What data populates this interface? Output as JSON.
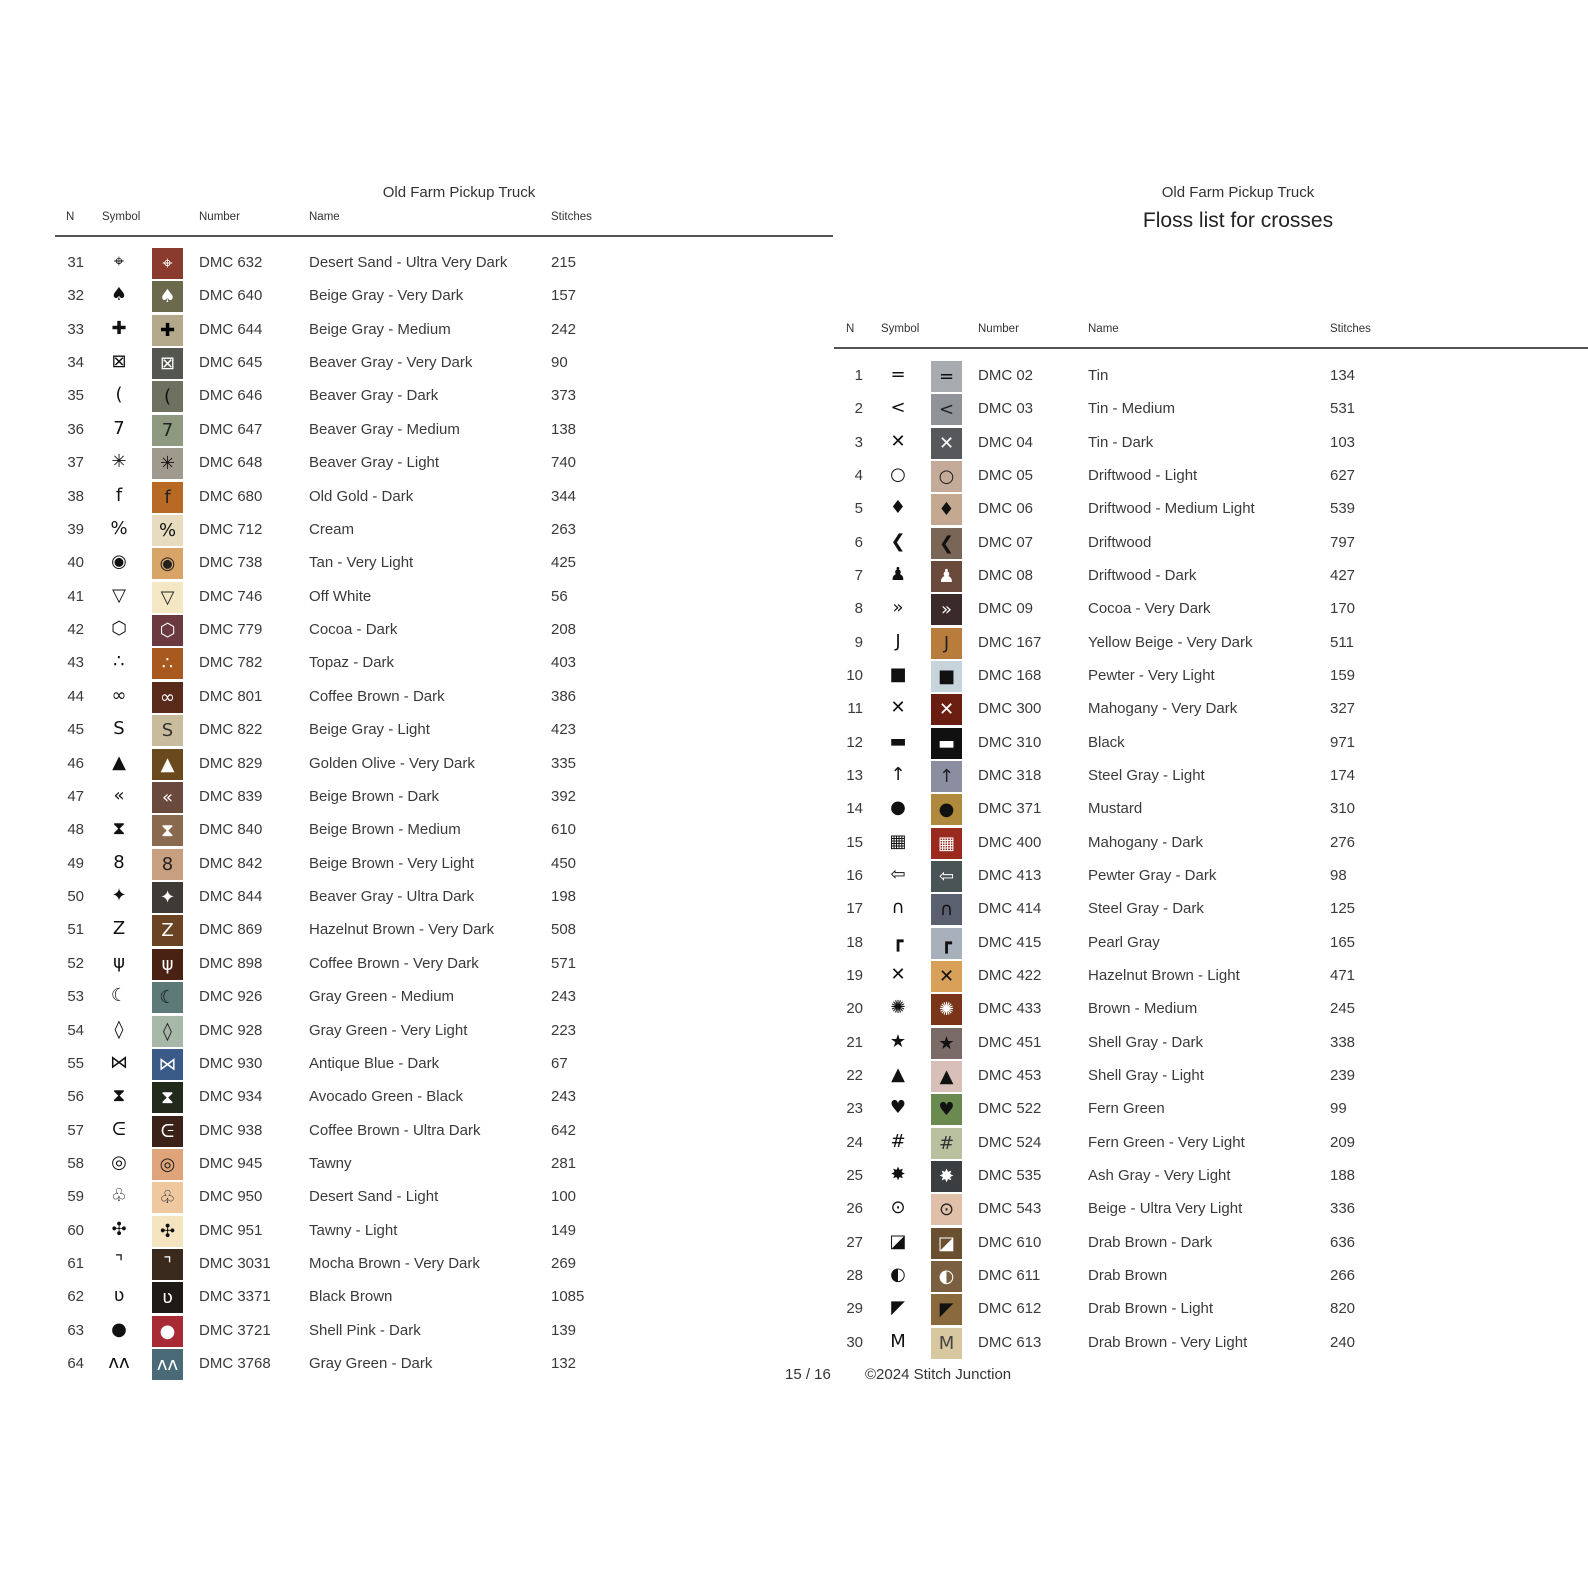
{
  "left": {
    "title": "Old Farm Pickup Truck",
    "headers": {
      "n": "N",
      "symbol": "Symbol",
      "number": "Number",
      "name": "Name",
      "stitches": "Stitches"
    },
    "rows": [
      {
        "n": "31",
        "sym": "⌖",
        "color": "#8b3a2e",
        "fg": "#fff",
        "number": "DMC 632",
        "name": "Desert Sand - Ultra Very Dark",
        "stitches": "215"
      },
      {
        "n": "32",
        "sym": "♠",
        "color": "#6b6a4c",
        "fg": "#fff",
        "number": "DMC 640",
        "name": "Beige Gray - Very Dark",
        "stitches": "157"
      },
      {
        "n": "33",
        "sym": "✚",
        "color": "#b3a88a",
        "fg": "#000",
        "number": "DMC 644",
        "name": "Beige Gray - Medium",
        "stitches": "242"
      },
      {
        "n": "34",
        "sym": "⊠",
        "color": "#545650",
        "fg": "#fff",
        "number": "DMC 645",
        "name": "Beaver Gray - Very Dark",
        "stitches": "90"
      },
      {
        "n": "35",
        "sym": "(",
        "color": "#6e7060",
        "fg": "#111",
        "number": "DMC 646",
        "name": "Beaver Gray - Dark",
        "stitches": "373"
      },
      {
        "n": "36",
        "sym": "7",
        "color": "#8e9a80",
        "fg": "#222",
        "number": "DMC 647",
        "name": "Beaver Gray - Medium",
        "stitches": "138"
      },
      {
        "n": "37",
        "sym": "✳",
        "color": "#a09a8e",
        "fg": "#111",
        "number": "DMC 648",
        "name": "Beaver Gray - Light",
        "stitches": "740"
      },
      {
        "n": "38",
        "sym": "f",
        "color": "#b86a24",
        "fg": "#222",
        "number": "DMC 680",
        "name": "Old Gold - Dark",
        "stitches": "344"
      },
      {
        "n": "39",
        "sym": "%",
        "color": "#e8dcc0",
        "fg": "#111",
        "number": "DMC 712",
        "name": "Cream",
        "stitches": "263"
      },
      {
        "n": "40",
        "sym": "◉",
        "color": "#d8a468",
        "fg": "#222",
        "number": "DMC 738",
        "name": "Tan - Very Light",
        "stitches": "425"
      },
      {
        "n": "41",
        "sym": "▽",
        "color": "#f4e8c4",
        "fg": "#222",
        "number": "DMC 746",
        "name": "Off White",
        "stitches": "56"
      },
      {
        "n": "42",
        "sym": "⬡",
        "color": "#6b3a40",
        "fg": "#fff",
        "number": "DMC 779",
        "name": "Cocoa - Dark",
        "stitches": "208"
      },
      {
        "n": "43",
        "sym": "∴",
        "color": "#a85a1e",
        "fg": "#fff",
        "number": "DMC 782",
        "name": "Topaz - Dark",
        "stitches": "403"
      },
      {
        "n": "44",
        "sym": "∞",
        "color": "#5a2a1a",
        "fg": "#fff",
        "number": "DMC 801",
        "name": "Coffee Brown - Dark",
        "stitches": "386"
      },
      {
        "n": "45",
        "sym": "S",
        "color": "#c8bc9c",
        "fg": "#333",
        "number": "DMC 822",
        "name": "Beige Gray - Light",
        "stitches": "423"
      },
      {
        "n": "46",
        "sym": "▲",
        "color": "#6a4a1c",
        "fg": "#fff",
        "number": "DMC 829",
        "name": "Golden Olive - Very Dark",
        "stitches": "335"
      },
      {
        "n": "47",
        "sym": "«",
        "color": "#6a4a3c",
        "fg": "#fff",
        "number": "DMC 839",
        "name": "Beige Brown - Dark",
        "stitches": "392"
      },
      {
        "n": "48",
        "sym": "⧗",
        "color": "#8a6a4e",
        "fg": "#fff",
        "number": "DMC 840",
        "name": "Beige Brown - Medium",
        "stitches": "610"
      },
      {
        "n": "49",
        "sym": "8",
        "color": "#c8a080",
        "fg": "#222",
        "number": "DMC 842",
        "name": "Beige Brown - Very Light",
        "stitches": "450"
      },
      {
        "n": "50",
        "sym": "✦",
        "color": "#3e3a36",
        "fg": "#fff",
        "number": "DMC 844",
        "name": "Beaver Gray - Ultra Dark",
        "stitches": "198"
      },
      {
        "n": "51",
        "sym": "Z",
        "color": "#6a4422",
        "fg": "#fff",
        "number": "DMC 869",
        "name": "Hazelnut Brown - Very Dark",
        "stitches": "508"
      },
      {
        "n": "52",
        "sym": "ψ",
        "color": "#4a2214",
        "fg": "#fff",
        "number": "DMC 898",
        "name": "Coffee Brown - Very Dark",
        "stitches": "571"
      },
      {
        "n": "53",
        "sym": "☾",
        "color": "#5e7a78",
        "fg": "#111",
        "number": "DMC 926",
        "name": "Gray Green - Medium",
        "stitches": "243"
      },
      {
        "n": "54",
        "sym": "◊",
        "color": "#a8b8a8",
        "fg": "#222",
        "number": "DMC 928",
        "name": "Gray Green - Very Light",
        "stitches": "223"
      },
      {
        "n": "55",
        "sym": "⋈",
        "color": "#3a5a88",
        "fg": "#fff",
        "number": "DMC 930",
        "name": "Antique Blue - Dark",
        "stitches": "67"
      },
      {
        "n": "56",
        "sym": "⧗",
        "color": "#222a1c",
        "fg": "#fff",
        "number": "DMC 934",
        "name": "Avocado Green - Black",
        "stitches": "243"
      },
      {
        "n": "57",
        "sym": "ᕮ",
        "color": "#3a2218",
        "fg": "#fff",
        "number": "DMC 938",
        "name": "Coffee Brown - Ultra Dark",
        "stitches": "642"
      },
      {
        "n": "58",
        "sym": "◎",
        "color": "#e0a47a",
        "fg": "#222",
        "number": "DMC 945",
        "name": "Tawny",
        "stitches": "281"
      },
      {
        "n": "59",
        "sym": "♧",
        "color": "#f0c8a0",
        "fg": "#222",
        "number": "DMC 950",
        "name": "Desert Sand - Light",
        "stitches": "100"
      },
      {
        "n": "60",
        "sym": "✣",
        "color": "#f4e4c0",
        "fg": "#111",
        "number": "DMC 951",
        "name": "Tawny - Light",
        "stitches": "149"
      },
      {
        "n": "61",
        "sym": "⌝",
        "color": "#3a2a1e",
        "fg": "#fff",
        "number": "DMC 3031",
        "name": "Mocha Brown - Very Dark",
        "stitches": "269"
      },
      {
        "n": "62",
        "sym": "ʋ",
        "color": "#1e1a16",
        "fg": "#fff",
        "number": "DMC 3371",
        "name": "Black Brown",
        "stitches": "1085"
      },
      {
        "n": "63",
        "sym": "●",
        "color": "#a82a34",
        "fg": "#fff",
        "number": "DMC 3721",
        "name": "Shell Pink - Dark",
        "stitches": "139"
      },
      {
        "n": "64",
        "sym": "ʌʌ",
        "color": "#4a6a78",
        "fg": "#fff",
        "number": "DMC 3768",
        "name": "Gray Green - Dark",
        "stitches": "132"
      }
    ]
  },
  "right": {
    "title": "Old Farm Pickup Truck",
    "subtitle": "Floss list for crosses",
    "headers": {
      "n": "N",
      "symbol": "Symbol",
      "number": "Number",
      "name": "Name",
      "stitches": "Stitches"
    },
    "rows": [
      {
        "n": "1",
        "sym": "=",
        "color": "#a8acb0",
        "fg": "#111",
        "number": "DMC 02",
        "name": "Tin",
        "stitches": "134"
      },
      {
        "n": "2",
        "sym": "<",
        "color": "#909498",
        "fg": "#222",
        "number": "DMC 03",
        "name": "Tin - Medium",
        "stitches": "531"
      },
      {
        "n": "3",
        "sym": "✕",
        "color": "#56585c",
        "fg": "#fff",
        "number": "DMC 04",
        "name": "Tin - Dark",
        "stitches": "103"
      },
      {
        "n": "4",
        "sym": "○",
        "color": "#c4aa98",
        "fg": "#222",
        "number": "DMC 05",
        "name": "Driftwood - Light",
        "stitches": "627"
      },
      {
        "n": "5",
        "sym": "♦",
        "color": "#c4a890",
        "fg": "#111",
        "number": "DMC 06",
        "name": "Driftwood - Medium Light",
        "stitches": "539"
      },
      {
        "n": "6",
        "sym": "❮",
        "color": "#7a6656",
        "fg": "#111",
        "number": "DMC 07",
        "name": "Driftwood",
        "stitches": "797"
      },
      {
        "n": "7",
        "sym": "♟",
        "color": "#6a4a3a",
        "fg": "#fff",
        "number": "DMC 08",
        "name": "Driftwood - Dark",
        "stitches": "427"
      },
      {
        "n": "8",
        "sym": "»",
        "color": "#3a2a2a",
        "fg": "#fff",
        "number": "DMC 09",
        "name": "Cocoa - Very Dark",
        "stitches": "170"
      },
      {
        "n": "9",
        "sym": "J",
        "color": "#b87c3c",
        "fg": "#222",
        "number": "DMC 167",
        "name": "Yellow Beige - Very Dark",
        "stitches": "511"
      },
      {
        "n": "10",
        "sym": "■",
        "color": "#c8d4dc",
        "fg": "#111",
        "number": "DMC 168",
        "name": "Pewter - Very Light",
        "stitches": "159"
      },
      {
        "n": "11",
        "sym": "✕",
        "color": "#6a1e12",
        "fg": "#fff",
        "number": "DMC 300",
        "name": "Mahogany - Very Dark",
        "stitches": "327"
      },
      {
        "n": "12",
        "sym": "▬",
        "color": "#101010",
        "fg": "#fff",
        "number": "DMC 310",
        "name": "Black",
        "stitches": "971"
      },
      {
        "n": "13",
        "sym": "↑",
        "color": "#8a8ea0",
        "fg": "#222",
        "number": "DMC 318",
        "name": "Steel Gray - Light",
        "stitches": "174"
      },
      {
        "n": "14",
        "sym": "●",
        "color": "#b08a3c",
        "fg": "#111",
        "number": "DMC 371",
        "name": "Mustard",
        "stitches": "310"
      },
      {
        "n": "15",
        "sym": "▦",
        "color": "#9a2a1e",
        "fg": "#fff",
        "number": "DMC 400",
        "name": "Mahogany - Dark",
        "stitches": "276"
      },
      {
        "n": "16",
        "sym": "⇦",
        "color": "#4a5456",
        "fg": "#fff",
        "number": "DMC 413",
        "name": "Pewter Gray - Dark",
        "stitches": "98"
      },
      {
        "n": "17",
        "sym": "∩",
        "color": "#5a6070",
        "fg": "#111",
        "number": "DMC 414",
        "name": "Steel Gray - Dark",
        "stitches": "125"
      },
      {
        "n": "18",
        "sym": "┏",
        "color": "#a8b0bc",
        "fg": "#111",
        "number": "DMC 415",
        "name": "Pearl Gray",
        "stitches": "165"
      },
      {
        "n": "19",
        "sym": "✕",
        "color": "#d8a058",
        "fg": "#111",
        "number": "DMC 422",
        "name": "Hazelnut Brown - Light",
        "stitches": "471"
      },
      {
        "n": "20",
        "sym": "✺",
        "color": "#7a3418",
        "fg": "#fff",
        "number": "DMC 433",
        "name": "Brown - Medium",
        "stitches": "245"
      },
      {
        "n": "21",
        "sym": "★",
        "color": "#7a6a68",
        "fg": "#111",
        "number": "DMC 451",
        "name": "Shell Gray - Dark",
        "stitches": "338"
      },
      {
        "n": "22",
        "sym": "▲",
        "color": "#d8c0b8",
        "fg": "#111",
        "number": "DMC 453",
        "name": "Shell Gray - Light",
        "stitches": "239"
      },
      {
        "n": "23",
        "sym": "♥",
        "color": "#6a8a50",
        "fg": "#111",
        "number": "DMC 522",
        "name": "Fern Green",
        "stitches": "99"
      },
      {
        "n": "24",
        "sym": "#",
        "color": "#b8c0a0",
        "fg": "#333",
        "number": "DMC 524",
        "name": "Fern Green - Very Light",
        "stitches": "209"
      },
      {
        "n": "25",
        "sym": "✸",
        "color": "#3a3e40",
        "fg": "#fff",
        "number": "DMC 535",
        "name": "Ash Gray - Very Light",
        "stitches": "188"
      },
      {
        "n": "26",
        "sym": "⊙",
        "color": "#e0c0a8",
        "fg": "#222",
        "number": "DMC 543",
        "name": "Beige - Ultra Very Light",
        "stitches": "336"
      },
      {
        "n": "27",
        "sym": "◪",
        "color": "#6a5030",
        "fg": "#fff",
        "number": "DMC 610",
        "name": "Drab Brown - Dark",
        "stitches": "636"
      },
      {
        "n": "28",
        "sym": "◐",
        "color": "#7a6040",
        "fg": "#fff",
        "number": "DMC 611",
        "name": "Drab Brown",
        "stitches": "266"
      },
      {
        "n": "29",
        "sym": "◤",
        "color": "#8a6a3c",
        "fg": "#111",
        "number": "DMC 612",
        "name": "Drab Brown - Light",
        "stitches": "820"
      },
      {
        "n": "30",
        "sym": "M",
        "color": "#d8c8a0",
        "fg": "#444",
        "number": "DMC 613",
        "name": "Drab Brown - Very Light",
        "stitches": "240"
      }
    ]
  },
  "footer": {
    "page": "15 / 16",
    "copyright": "©2024 Stitch Junction"
  }
}
